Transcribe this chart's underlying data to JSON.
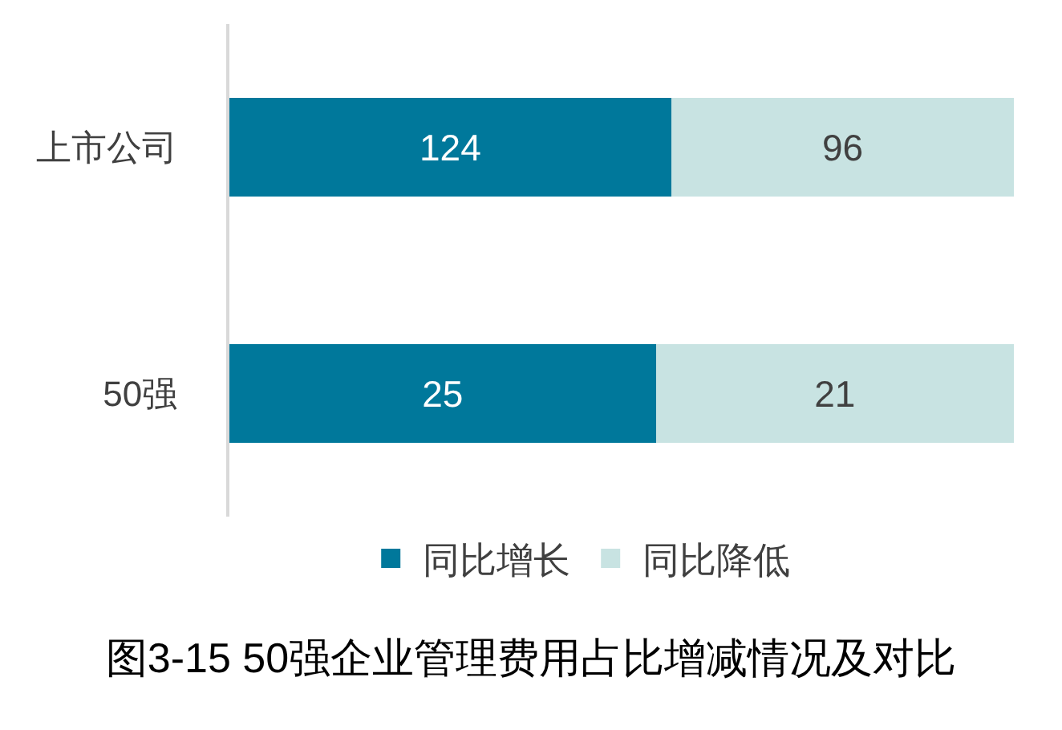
{
  "chart_data": [
    {
      "type": "bar",
      "orientation": "horizontal",
      "stacked": true,
      "data_labels": true,
      "categories": [
        "上市公司"
      ],
      "series": [
        {
          "name": "同比增长",
          "color": "#00789b",
          "values": [
            124
          ]
        },
        {
          "name": "同比降低",
          "color": "#c8e3e2",
          "values": [
            96
          ]
        }
      ],
      "legend": "bottom"
    },
    {
      "type": "bar",
      "orientation": "horizontal",
      "stacked": true,
      "data_labels": true,
      "categories": [
        "50强"
      ],
      "series": [
        {
          "name": "同比增长",
          "color": "#00789b",
          "values": [
            25
          ]
        },
        {
          "name": "同比降低",
          "color": "#c8e3e2",
          "values": [
            21
          ]
        }
      ],
      "legend": "bottom",
      "title": "图3-15 50强企业管理费用占比增减情况及对比"
    }
  ]
}
